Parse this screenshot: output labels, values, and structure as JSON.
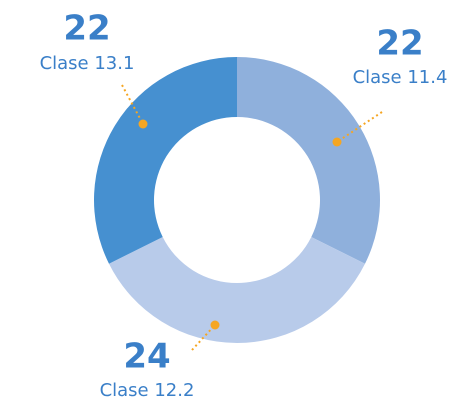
{
  "chart_data": {
    "type": "donut",
    "categories": [
      "Clase 11.4",
      "Clase 12.2",
      "Clase 13.1"
    ],
    "values": [
      22,
      24,
      22
    ],
    "colors": [
      "#8fb0dc",
      "#b8cbea",
      "#4690d0"
    ]
  }
}
